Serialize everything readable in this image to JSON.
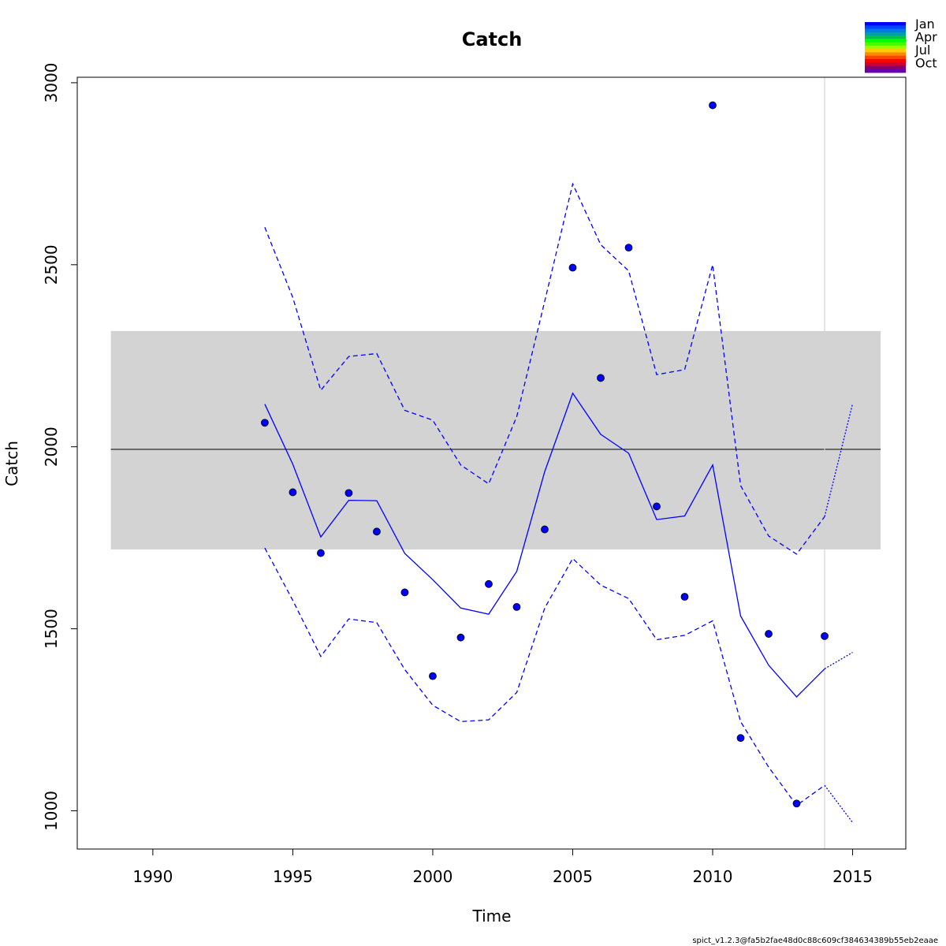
{
  "chart_data": {
    "type": "line",
    "title": "Catch",
    "xlabel": "Time",
    "ylabel": "Catch",
    "xlim": [
      1987.3,
      2016.9
    ],
    "ylim": [
      895,
      3015
    ],
    "xticks": [
      1990,
      1995,
      2000,
      2005,
      2010,
      2015
    ],
    "yticks": [
      1000,
      1500,
      2000,
      2500,
      3000
    ],
    "band": {
      "x": [
        1988.5,
        2016
      ],
      "y": [
        1718,
        2318
      ],
      "color": "#d3d3d3"
    },
    "hline": {
      "y": 1993,
      "color": "#000000"
    },
    "vline": {
      "x": 2014,
      "color": "#d3d3d3"
    },
    "observations": {
      "x": [
        1994,
        1995,
        1996,
        1997,
        1998,
        1999,
        2000,
        2001,
        2002,
        2003,
        2004,
        2005,
        2006,
        2007,
        2008,
        2009,
        2010,
        2011,
        2012,
        2013,
        2014
      ],
      "y": [
        2066,
        1875,
        1708,
        1873,
        1767,
        1600,
        1370,
        1476,
        1623,
        1560,
        1773,
        2492,
        2189,
        2547,
        1836,
        1588,
        2938,
        1200,
        1486,
        1020,
        1480
      ],
      "color": "#0000ff"
    },
    "series": [
      {
        "style": "solid",
        "x": [
          1994,
          1995,
          1996,
          1997,
          1998,
          1999,
          2000,
          2001,
          2002,
          2003,
          2004,
          2005,
          2006,
          2007,
          2008,
          2009,
          2010,
          2011,
          2012,
          2013,
          2014
        ],
        "y": [
          2117,
          1952,
          1752,
          1853,
          1852,
          1707,
          1635,
          1557,
          1540,
          1658,
          1932,
          2147,
          2034,
          1982,
          1800,
          1810,
          1950,
          1535,
          1400,
          1313,
          1390
        ]
      },
      {
        "style": "dashed",
        "x": [
          1994,
          1995,
          1996,
          1997,
          1998,
          1999,
          2000,
          2001,
          2002,
          2003,
          2004,
          2005,
          2006,
          2007,
          2008,
          2009,
          2010,
          2011,
          2012,
          2013,
          2014
        ],
        "y": [
          2603,
          2410,
          2155,
          2248,
          2256,
          2100,
          2073,
          1950,
          1898,
          2083,
          2400,
          2722,
          2555,
          2483,
          2198,
          2212,
          2500,
          1893,
          1755,
          1705,
          1808
        ]
      },
      {
        "style": "dashed",
        "x": [
          1994,
          1995,
          1996,
          1997,
          1998,
          1999,
          2000,
          2001,
          2002,
          2003,
          2004,
          2005,
          2006,
          2007,
          2008,
          2009,
          2010,
          2011,
          2012,
          2013,
          2014
        ],
        "y": [
          1722,
          1578,
          1424,
          1527,
          1517,
          1388,
          1290,
          1245,
          1250,
          1325,
          1557,
          1693,
          1620,
          1583,
          1470,
          1482,
          1522,
          1245,
          1120,
          1015,
          1070
        ]
      },
      {
        "style": "dotted",
        "x": [
          2014,
          2015
        ],
        "y": [
          1390,
          1435
        ]
      },
      {
        "style": "dotted",
        "x": [
          2014,
          2015
        ],
        "y": [
          1808,
          2118
        ]
      },
      {
        "style": "dotted",
        "x": [
          2014,
          2015
        ],
        "y": [
          1070,
          968
        ]
      }
    ],
    "legend": {
      "placement": "top-right",
      "labels": [
        "Jan",
        "Apr",
        "Jul",
        "Oct"
      ],
      "colors": [
        "#0000ff",
        "#0044ff",
        "#0077e8",
        "#00a0a0",
        "#00c050",
        "#00ff00",
        "#44ff00",
        "#99ff00",
        "#ffcc00",
        "#ff8800",
        "#ff4400",
        "#ff0000",
        "#cc0033",
        "#880066",
        "#6600aa"
      ]
    }
  },
  "footer": "spict_v1.2.3@fa5b2fae48d0c88c609cf384634389b55eb2eaae"
}
